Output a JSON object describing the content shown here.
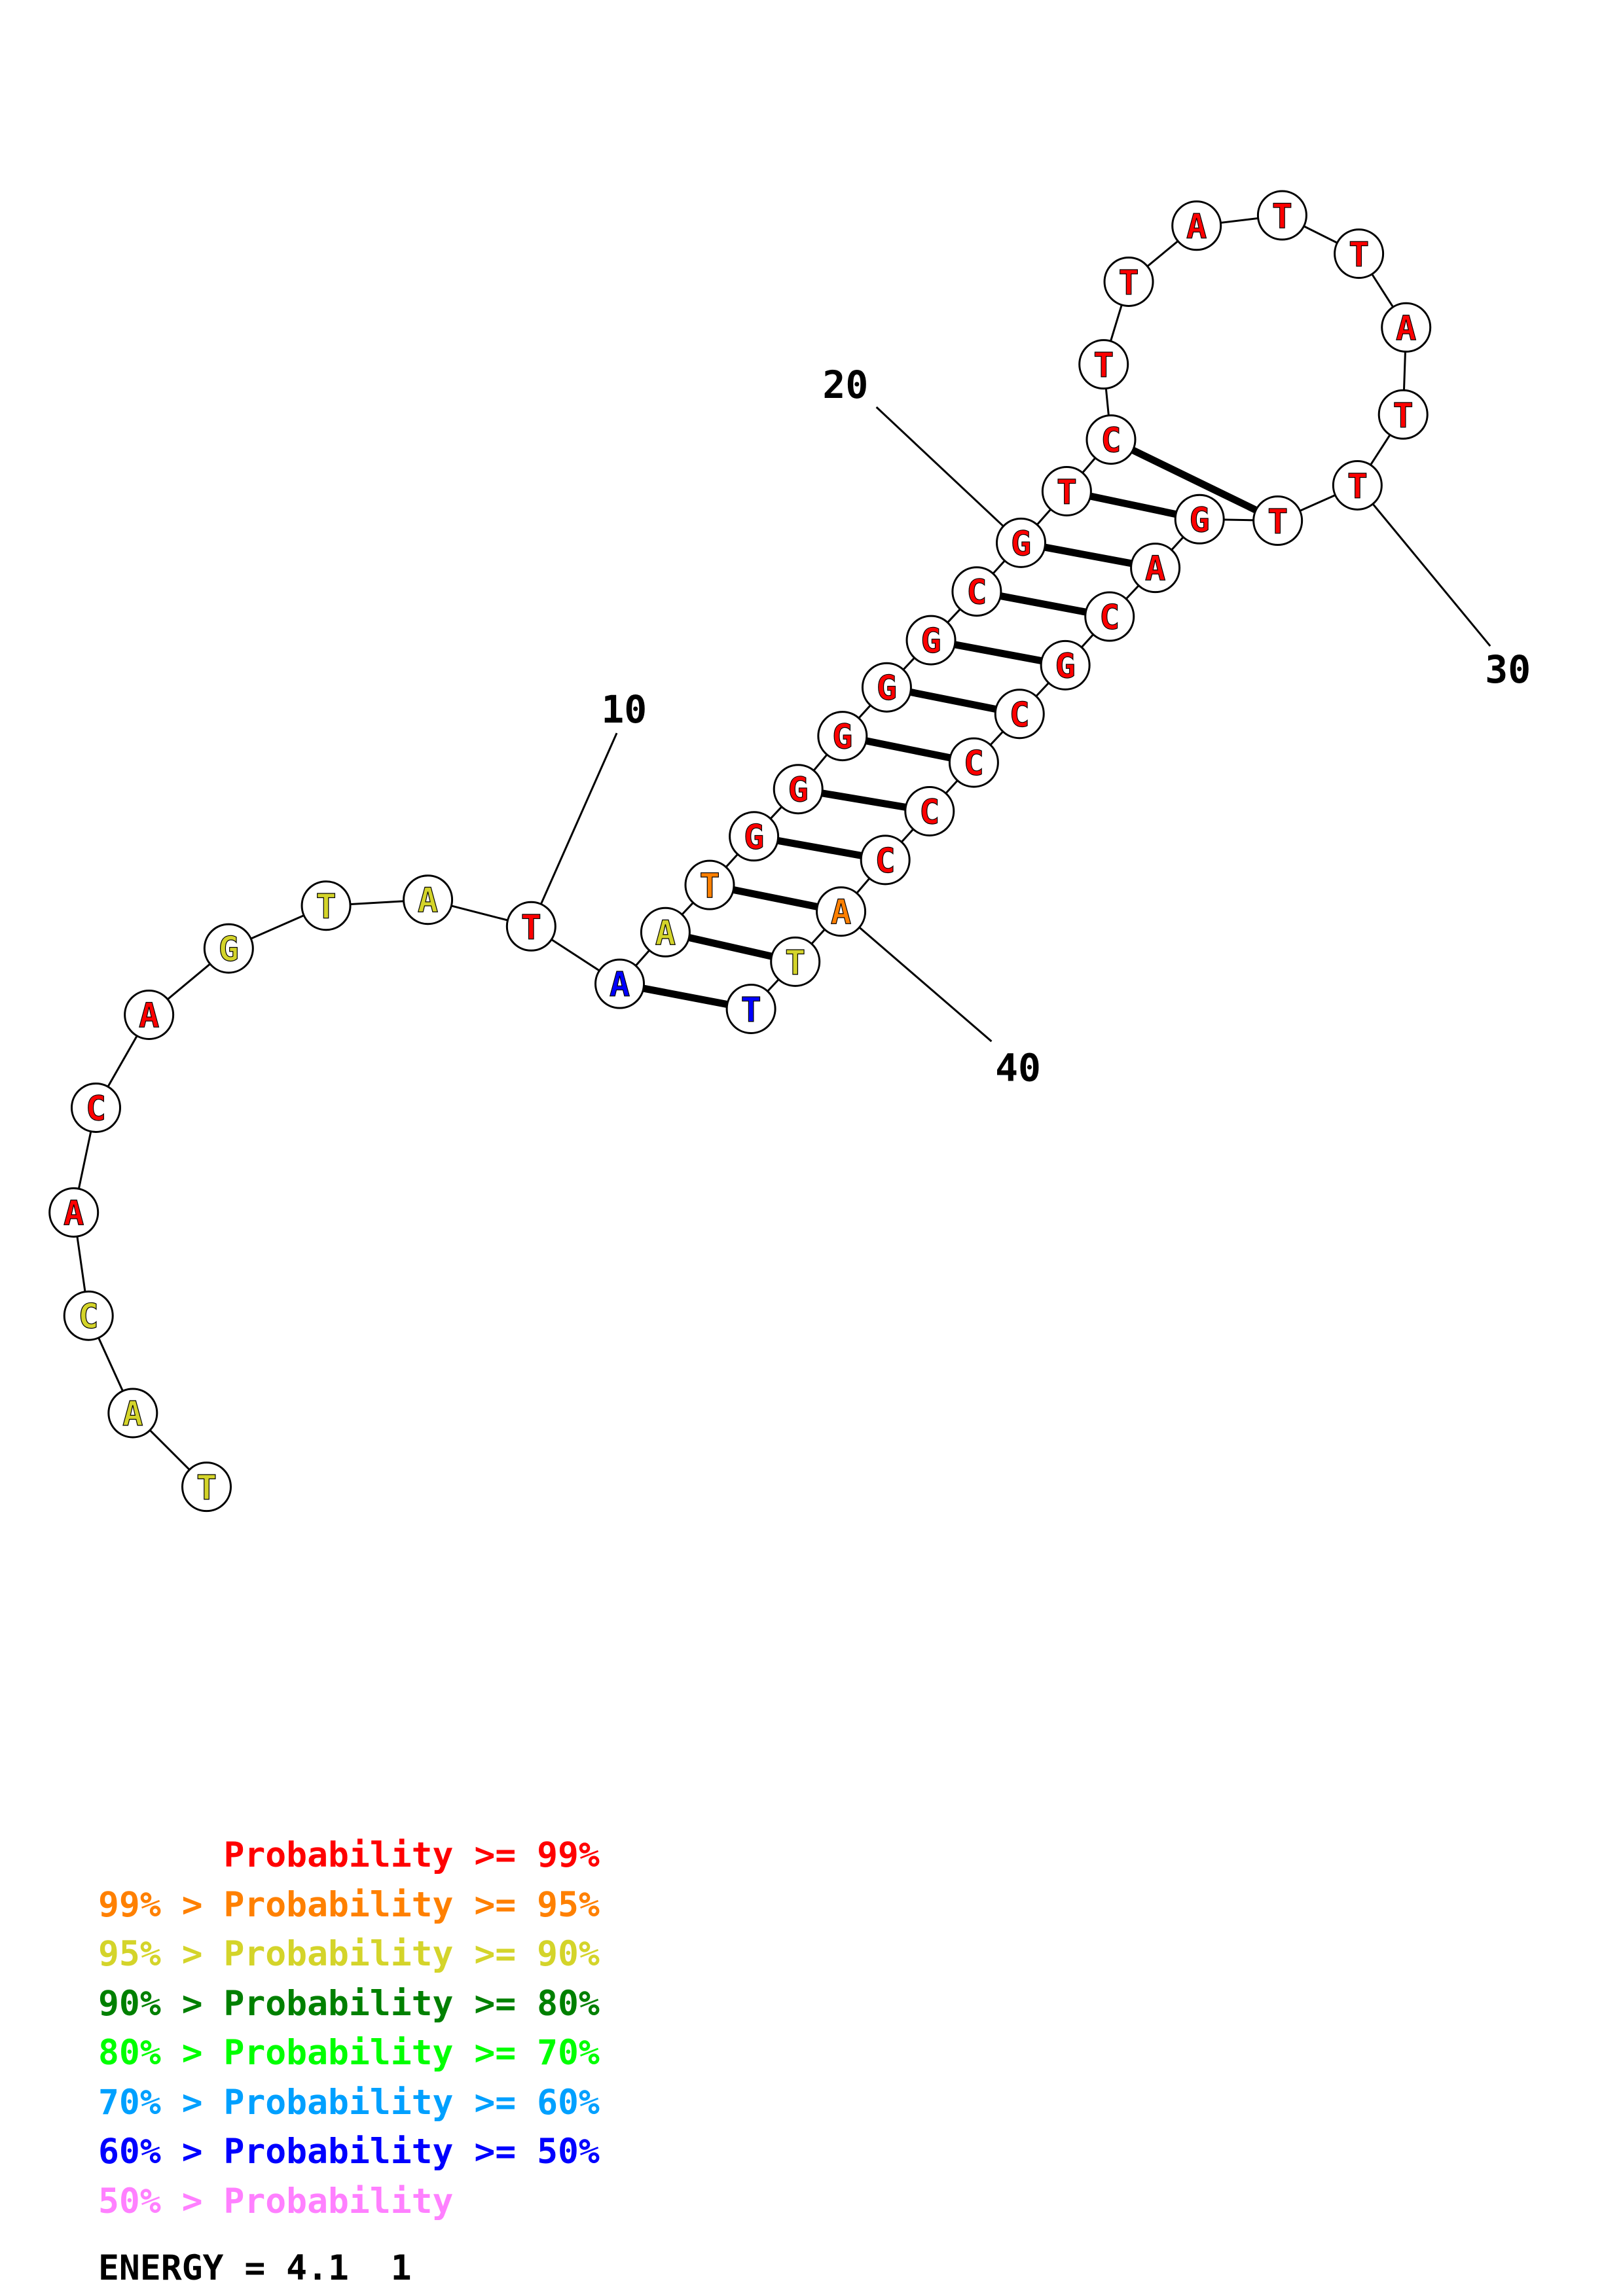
{
  "sequence": [
    "T",
    "A",
    "C",
    "A",
    "C",
    "A",
    "G",
    "T",
    "A",
    "T",
    "A",
    "A",
    "T",
    "G",
    "G",
    "G",
    "G",
    "G",
    "C",
    "G",
    "T",
    "C",
    "T",
    "T",
    "A",
    "T",
    "T",
    "A",
    "T",
    "T",
    "T",
    "G",
    "A",
    "C",
    "G",
    "C",
    "C",
    "C",
    "C",
    "A",
    "T",
    "T"
  ],
  "base_probability_class": [
    2,
    2,
    2,
    0,
    0,
    0,
    2,
    2,
    2,
    0,
    6,
    2,
    1,
    0,
    0,
    0,
    0,
    0,
    0,
    0,
    0,
    0,
    0,
    0,
    0,
    0,
    0,
    0,
    0,
    0,
    0,
    0,
    0,
    0,
    0,
    0,
    0,
    0,
    0,
    1,
    2,
    6
  ],
  "pairs": [
    [
      11,
      42
    ],
    [
      12,
      41
    ],
    [
      13,
      40
    ],
    [
      14,
      39
    ],
    [
      15,
      38
    ],
    [
      16,
      37
    ],
    [
      17,
      36
    ],
    [
      18,
      35
    ],
    [
      19,
      34
    ],
    [
      20,
      33
    ],
    [
      21,
      32
    ],
    [
      22,
      31
    ]
  ],
  "position_labels": [
    "10",
    "20",
    "30",
    "40"
  ],
  "legend": [
    {
      "prefix": "",
      "main": "Probability >= 99%",
      "color": "#ff0000"
    },
    {
      "prefix": "99% > ",
      "main": "Probability >= 95%",
      "color": "#ff8000"
    },
    {
      "prefix": "95% > ",
      "main": "Probability >= 90%",
      "color": "#d4d42a"
    },
    {
      "prefix": "90% > ",
      "main": "Probability >= 80%",
      "color": "#008000"
    },
    {
      "prefix": "80% > ",
      "main": "Probability >= 70%",
      "color": "#00ff00"
    },
    {
      "prefix": "70% > ",
      "main": "Probability >= 60%",
      "color": "#00a0ff"
    },
    {
      "prefix": "60% > ",
      "main": "Probability >= 50%",
      "color": "#0000ff"
    },
    {
      "prefix": "50% > ",
      "main": "Probability",
      "color": "#ff80ff"
    }
  ],
  "energy": "ENERGY = 4.1  1"
}
